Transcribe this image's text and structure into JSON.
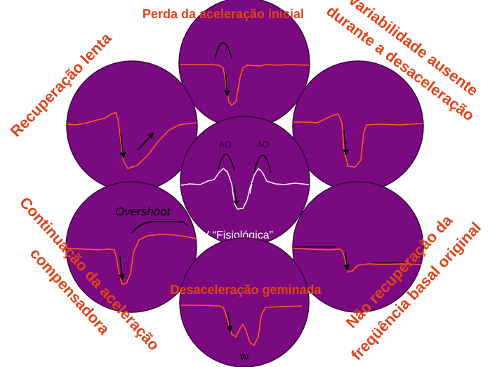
{
  "colors": {
    "circle_fill": "#7a0a80",
    "circle_stroke": "#3a0040",
    "trace": "#ff5a1a",
    "label_text": "#e0441a",
    "center_trace": "#ffffff",
    "arrow": "#000000"
  },
  "labels": {
    "top": "Perda da aceleração inicial",
    "top_right": [
      "Variabilidade ausente",
      "durante a desaceleração"
    ],
    "top_left": "Recuperação lenta",
    "bottom_left": [
      "Continuação da aceleração",
      "compensadora"
    ],
    "bottom_right": [
      "Não recuperação da",
      "freqüência basal original"
    ],
    "bottom_center": "Desaceleração geminada",
    "center": "DV “Fisiológica”",
    "overshoot": "Overshoot",
    "ao_left": "AO",
    "ao_right": "AO",
    "w": "W"
  }
}
